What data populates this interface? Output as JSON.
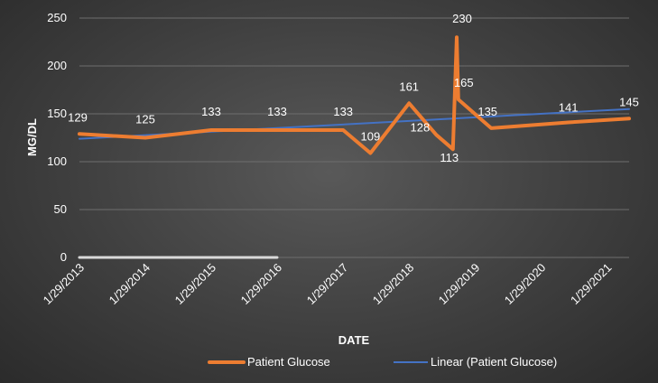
{
  "chart_data": {
    "type": "line",
    "title": "",
    "xlabel": "DATE",
    "ylabel": "MG/DL",
    "ylim": [
      0,
      250
    ],
    "yticks": [
      0,
      50,
      100,
      150,
      200,
      250
    ],
    "x_tick_labels": [
      "1/29/2013",
      "1/29/2014",
      "1/29/2015",
      "1/29/2016",
      "1/29/2017",
      "1/29/2018",
      "1/29/2019",
      "1/29/2020",
      "1/29/2021"
    ],
    "x_range": [
      "2013-01-29",
      "2021-06-01"
    ],
    "grid": true,
    "legend_position": "bottom",
    "series": [
      {
        "name": "Patient Glucose",
        "color": "#ED7D31",
        "points": [
          {
            "date": "2013-01-29",
            "value": 129,
            "label": "129"
          },
          {
            "date": "2014-01-29",
            "value": 125,
            "label": "125"
          },
          {
            "date": "2015-01-29",
            "value": 133,
            "label": "133"
          },
          {
            "date": "2016-01-29",
            "value": 133,
            "label": "133"
          },
          {
            "date": "2017-01-29",
            "value": 133,
            "label": "133"
          },
          {
            "date": "2017-06-29",
            "value": 109,
            "label": "109"
          },
          {
            "date": "2018-01-29",
            "value": 161,
            "label": "161"
          },
          {
            "date": "2018-06-29",
            "value": 128,
            "label": "128"
          },
          {
            "date": "2018-09-29",
            "value": 113,
            "label": "113"
          },
          {
            "date": "2018-10-20",
            "value": 230,
            "label": "230"
          },
          {
            "date": "2018-10-29",
            "value": 165,
            "label": "165"
          },
          {
            "date": "2019-04-29",
            "value": 135,
            "label": "135"
          },
          {
            "date": "2020-06-29",
            "value": 141,
            "label": "141"
          },
          {
            "date": "2021-06-01",
            "value": 145,
            "label": "145"
          }
        ]
      },
      {
        "name": "Linear (Patient Glucose)",
        "color": "#4472C4",
        "trendline": true,
        "points": [
          {
            "date": "2013-01-29",
            "value": 124
          },
          {
            "date": "2021-06-01",
            "value": 155
          }
        ]
      }
    ],
    "baseline_bar": {
      "color": "#D9D9D9",
      "from": "2013-01-29",
      "to": "2016-01-29",
      "value": 0
    }
  }
}
